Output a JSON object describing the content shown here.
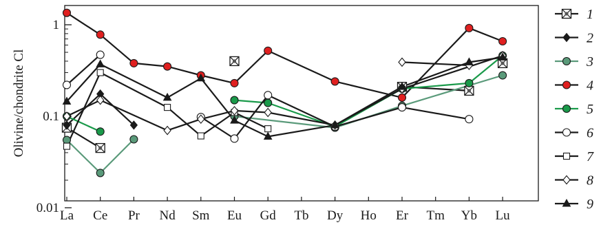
{
  "chart_data": {
    "type": "line",
    "ylabel": "Olivine/chondrite Cl",
    "xlabel": "",
    "y_scale": "log",
    "ylim": [
      0.01,
      1.6
    ],
    "y_ticks": [
      1,
      0.1,
      0.01
    ],
    "y_tick_labels": [
      "1",
      "0.1",
      "0.01"
    ],
    "categories": [
      "La",
      "Ce",
      "Pr",
      "Nd",
      "Sm",
      "Eu",
      "Gd",
      "Tb",
      "Dy",
      "Ho",
      "Er",
      "Tm",
      "Yb",
      "Lu"
    ],
    "grid": false,
    "legend_position": "right",
    "series": [
      {
        "name": "1",
        "marker": "boxcross",
        "color": "#1a1a1a",
        "segments": [
          [
            [
              "La",
              0.075
            ],
            [
              "Ce",
              0.045
            ]
          ],
          [
            [
              "Eu",
              0.4
            ]
          ],
          [
            [
              "Er",
              0.21
            ],
            [
              "Yb",
              0.19
            ]
          ],
          [
            [
              "Lu",
              0.38
            ]
          ]
        ]
      },
      {
        "name": "2",
        "marker": "diamond-filled",
        "color": "#1a1a1a",
        "segments": [
          [
            [
              "La",
              0.08
            ],
            [
              "Ce",
              0.175
            ],
            [
              "Pr",
              0.08
            ]
          ]
        ]
      },
      {
        "name": "3",
        "marker": "circle",
        "color": "#5a9a7a",
        "fill": "#5a9a7a",
        "segments": [
          [
            [
              "La",
              0.055
            ],
            [
              "Ce",
              0.024
            ],
            [
              "Pr",
              0.056
            ]
          ],
          [
            [
              "Eu",
              0.1
            ],
            [
              "Dy",
              0.075
            ],
            [
              "Er",
              0.13
            ],
            [
              "Lu",
              0.28
            ]
          ]
        ]
      },
      {
        "name": "4",
        "marker": "circle",
        "color": "#1a1a1a",
        "fill": "#e02020",
        "segments": [
          [
            [
              "La",
              1.35
            ],
            [
              "Ce",
              0.78
            ],
            [
              "Pr",
              0.38
            ],
            [
              "Nd",
              0.35
            ],
            [
              "Sm",
              0.28
            ],
            [
              "Eu",
              0.23
            ],
            [
              "Gd",
              0.52
            ],
            [
              "Dy",
              0.24
            ],
            [
              "Er",
              0.16
            ],
            [
              "Yb",
              0.92
            ],
            [
              "Lu",
              0.66
            ]
          ]
        ]
      },
      {
        "name": "5",
        "marker": "circle",
        "color": "#1a9a4a",
        "fill": "#1a9a4a",
        "segments": [
          [
            [
              "La",
              0.1
            ],
            [
              "Ce",
              0.068
            ]
          ],
          [
            [
              "Eu",
              0.15
            ],
            [
              "Gd",
              0.14
            ],
            [
              "Dy",
              0.077
            ],
            [
              "Er",
              0.2
            ],
            [
              "Yb",
              0.23
            ],
            [
              "Lu",
              0.46
            ]
          ]
        ]
      },
      {
        "name": "6",
        "marker": "circle-open",
        "color": "#1a1a1a",
        "segments": [
          [
            [
              "La",
              0.22
            ],
            [
              "Ce",
              0.47
            ]
          ],
          [
            [
              "Sm",
              0.098
            ],
            [
              "Eu",
              0.057
            ],
            [
              "Gd",
              0.17
            ],
            [
              "Dy",
              0.077
            ],
            [
              "Er",
              0.125
            ],
            [
              "Yb",
              0.093
            ]
          ]
        ]
      },
      {
        "name": "7",
        "marker": "square-open",
        "color": "#1a1a1a",
        "segments": [
          [
            [
              "La",
              0.047
            ],
            [
              "Ce",
              0.3
            ],
            [
              "Nd",
              0.125
            ],
            [
              "Sm",
              0.061
            ],
            [
              "Eu",
              0.11
            ],
            [
              "Gd",
              0.073
            ]
          ]
        ]
      },
      {
        "name": "8",
        "marker": "diamond-open",
        "color": "#1a1a1a",
        "segments": [
          [
            [
              "La",
              0.1
            ],
            [
              "Ce",
              0.15
            ],
            [
              "Nd",
              0.07
            ],
            [
              "Sm",
              0.093
            ],
            [
              "Eu",
              0.115
            ],
            [
              "Gd",
              0.11
            ],
            [
              "Dy",
              0.08
            ],
            [
              "Er",
              0.2
            ],
            [
              "Lu",
              0.46
            ]
          ],
          [
            [
              "Er",
              0.39
            ],
            [
              "Yb",
              0.36
            ]
          ]
        ]
      },
      {
        "name": "9",
        "marker": "triangle-filled",
        "color": "#1a1a1a",
        "segments": [
          [
            [
              "La",
              0.145
            ],
            [
              "Ce",
              0.37
            ],
            [
              "Nd",
              0.16
            ],
            [
              "Sm",
              0.26
            ],
            [
              "Eu",
              0.09
            ],
            [
              "Gd",
              0.06
            ],
            [
              "Dy",
              0.08
            ],
            [
              "Er",
              0.21
            ],
            [
              "Yb",
              0.39
            ],
            [
              "Lu",
              0.44
            ]
          ]
        ]
      }
    ]
  }
}
